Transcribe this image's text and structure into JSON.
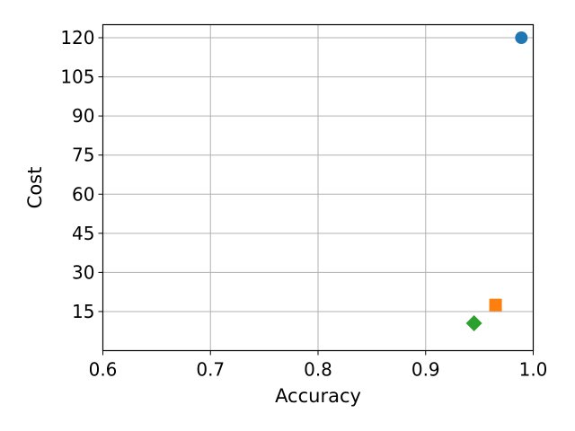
{
  "chart_data": {
    "type": "scatter",
    "title": "",
    "xlabel": "Accuracy",
    "ylabel": "Cost",
    "xlim": [
      0.6,
      1.0
    ],
    "ylim": [
      0,
      125
    ],
    "xticks": [
      0.6,
      0.7,
      0.8,
      0.9,
      1.0
    ],
    "xtick_labels": [
      "0.6",
      "0.7",
      "0.8",
      "0.9",
      "1.0"
    ],
    "yticks": [
      15,
      30,
      45,
      60,
      75,
      90,
      105,
      120
    ],
    "ytick_labels": [
      "15",
      "30",
      "45",
      "60",
      "75",
      "90",
      "105",
      "120"
    ],
    "grid": true,
    "points": [
      {
        "x": 0.989,
        "y": 120,
        "marker": "circle",
        "color": "#1f77b4"
      },
      {
        "x": 0.965,
        "y": 17.5,
        "marker": "square",
        "color": "#ff7f0e"
      },
      {
        "x": 0.945,
        "y": 10.5,
        "marker": "diamond",
        "color": "#2ca02c"
      }
    ]
  }
}
